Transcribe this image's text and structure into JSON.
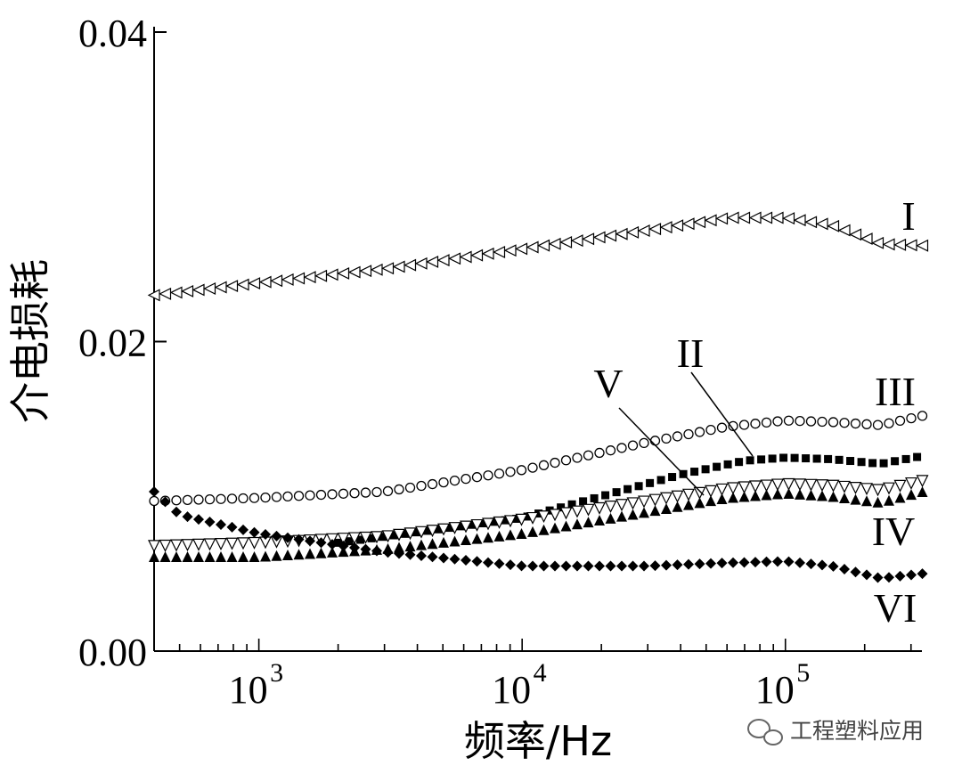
{
  "chart_data": {
    "type": "scatter",
    "title": "",
    "xlabel": "频率/Hz",
    "ylabel": "介电损耗",
    "x_scale": "log",
    "xlim": [
      400,
      330000
    ],
    "ylim": [
      0,
      0.04
    ],
    "x_ticks": [
      {
        "value": 1000,
        "base": "10",
        "exp": "3"
      },
      {
        "value": 10000,
        "base": "10",
        "exp": "4"
      },
      {
        "value": 100000,
        "base": "10",
        "exp": "5"
      }
    ],
    "y_ticks": [
      {
        "value": 0,
        "label": "0.00"
      },
      {
        "value": 0.02,
        "label": "0.02"
      },
      {
        "value": 0.04,
        "label": "0.04"
      }
    ],
    "series": [
      {
        "name": "I",
        "marker": "triangle-left-open",
        "points": [
          [
            400,
            0.023
          ],
          [
            1000,
            0.0238
          ],
          [
            3000,
            0.0247
          ],
          [
            10000,
            0.026
          ],
          [
            30000,
            0.0272
          ],
          [
            60000,
            0.028
          ],
          [
            100000,
            0.028
          ],
          [
            150000,
            0.0275
          ],
          [
            230000,
            0.0263
          ],
          [
            330000,
            0.0262
          ]
        ]
      },
      {
        "name": "II",
        "marker": "square-filled",
        "points": [
          [
            2000,
            0.007
          ],
          [
            3000,
            0.0074
          ],
          [
            10000,
            0.0086
          ],
          [
            20000,
            0.01
          ],
          [
            40000,
            0.0114
          ],
          [
            70000,
            0.0123
          ],
          [
            100000,
            0.0125
          ],
          [
            150000,
            0.0124
          ],
          [
            230000,
            0.0121
          ],
          [
            330000,
            0.0126
          ]
        ]
      },
      {
        "name": "III",
        "marker": "circle-open",
        "points": [
          [
            400,
            0.0097
          ],
          [
            1000,
            0.0099
          ],
          [
            3000,
            0.0103
          ],
          [
            10000,
            0.0117
          ],
          [
            30000,
            0.0135
          ],
          [
            60000,
            0.0145
          ],
          [
            100000,
            0.0149
          ],
          [
            150000,
            0.0148
          ],
          [
            230000,
            0.0146
          ],
          [
            330000,
            0.0152
          ]
        ]
      },
      {
        "name": "IV",
        "marker": "triangle-up-filled",
        "points": [
          [
            400,
            0.0061
          ],
          [
            1000,
            0.0061
          ],
          [
            3000,
            0.0066
          ],
          [
            10000,
            0.0076
          ],
          [
            30000,
            0.009
          ],
          [
            60000,
            0.0099
          ],
          [
            100000,
            0.0102
          ],
          [
            150000,
            0.01
          ],
          [
            230000,
            0.0096
          ],
          [
            330000,
            0.0103
          ]
        ]
      },
      {
        "name": "V",
        "marker": "triangle-down-open",
        "points": [
          [
            400,
            0.0068
          ],
          [
            1000,
            0.007
          ],
          [
            3000,
            0.0074
          ],
          [
            10000,
            0.0085
          ],
          [
            30000,
            0.0097
          ],
          [
            60000,
            0.0105
          ],
          [
            100000,
            0.0108
          ],
          [
            150000,
            0.0107
          ],
          [
            230000,
            0.0104
          ],
          [
            330000,
            0.011
          ]
        ]
      },
      {
        "name": "VI",
        "marker": "diamond-filled",
        "points": [
          [
            400,
            0.0103
          ],
          [
            500,
            0.0088
          ],
          [
            1000,
            0.0076
          ],
          [
            3000,
            0.0064
          ],
          [
            10000,
            0.0055
          ],
          [
            30000,
            0.0055
          ],
          [
            60000,
            0.0057
          ],
          [
            100000,
            0.0058
          ],
          [
            150000,
            0.0055
          ],
          [
            230000,
            0.0047
          ],
          [
            330000,
            0.005
          ]
        ]
      }
    ],
    "series_labels": [
      {
        "text": "I"
      },
      {
        "text": "II"
      },
      {
        "text": "III"
      },
      {
        "text": "IV"
      },
      {
        "text": "V"
      },
      {
        "text": "VI"
      }
    ]
  },
  "watermark": {
    "text": "工程塑料应用",
    "icon": "wechat-icon"
  }
}
